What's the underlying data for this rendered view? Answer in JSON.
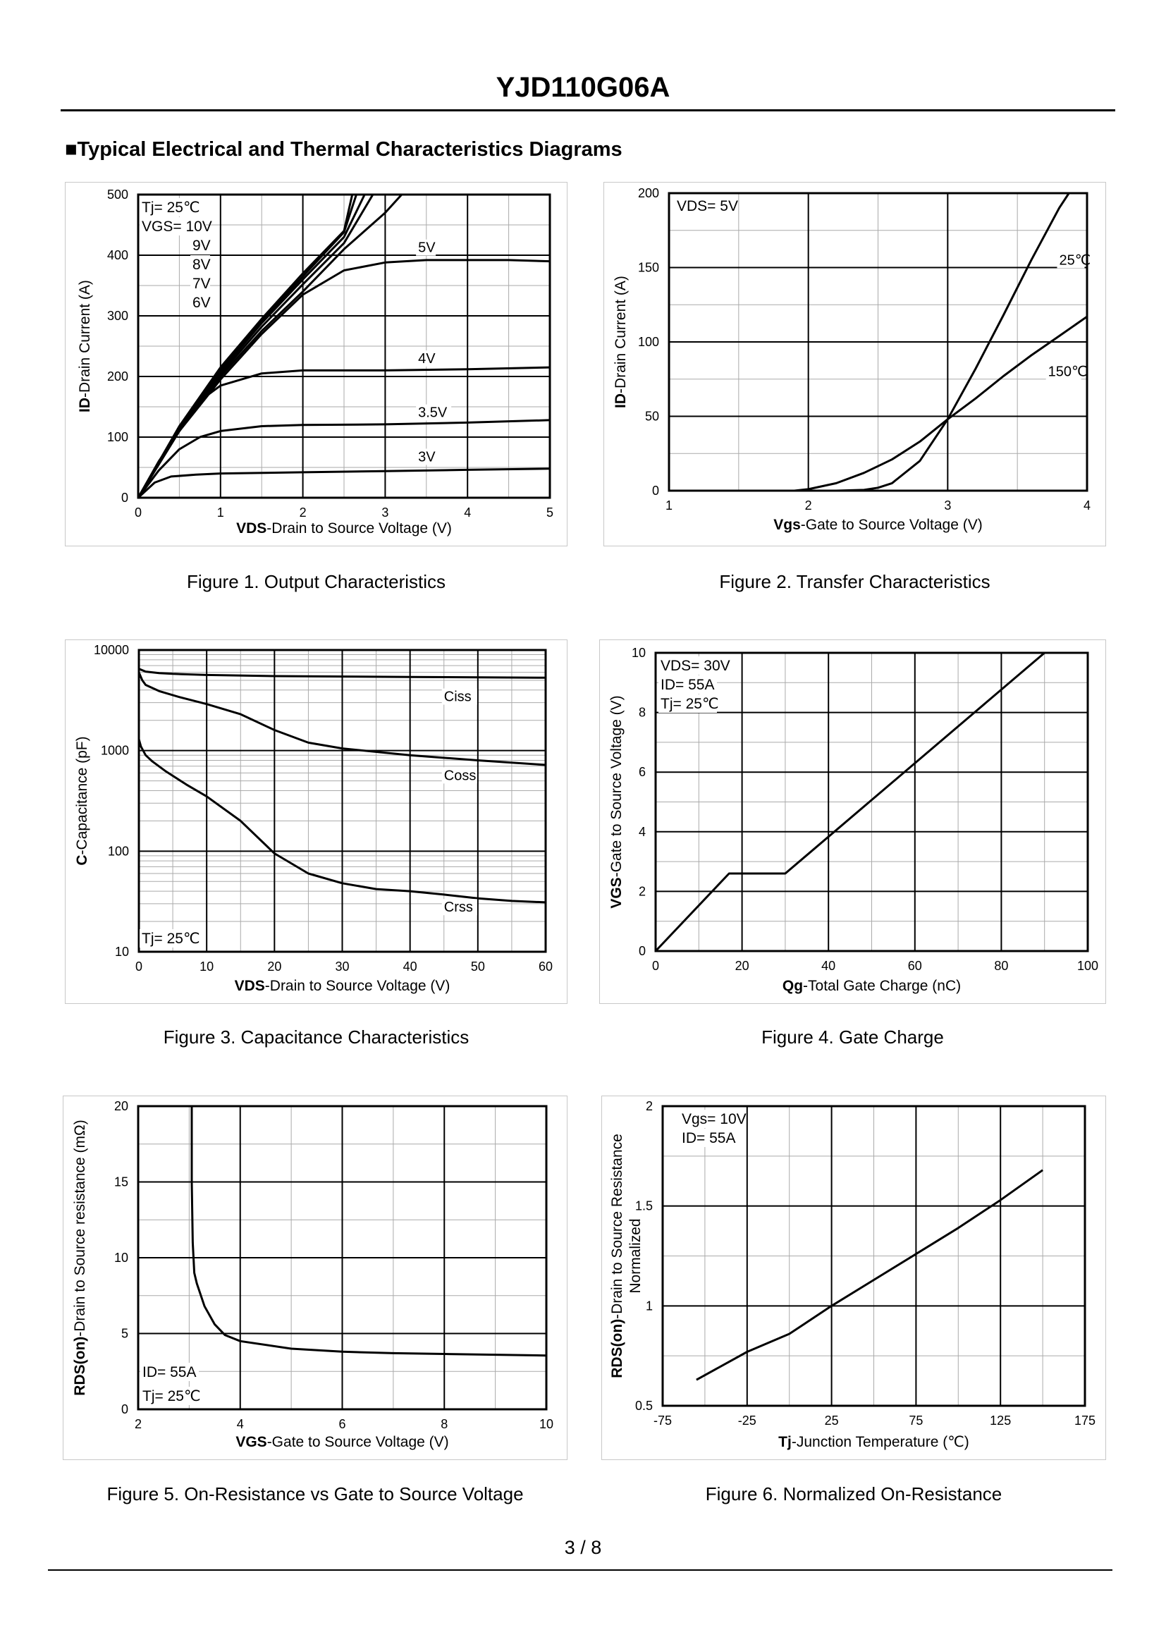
{
  "header": {
    "title": "YJD110G06A",
    "section_title": "■Typical Electrical and Thermal Characteristics Diagrams"
  },
  "footer": {
    "page": "3 / 8"
  },
  "chart_data": [
    {
      "id": "fig1",
      "type": "line",
      "caption": "Figure 1.  Output Characteristics",
      "xlabel_bold": "VDS",
      "xlabel_rest": "-Drain to Source Voltage (V)",
      "ylabel_bold": "ID",
      "ylabel_rest": "-Drain Current (A)",
      "xlim": [
        0,
        5
      ],
      "ylim": [
        0,
        500
      ],
      "xticks": [
        0,
        1,
        2,
        3,
        4,
        5
      ],
      "yticks": [
        0,
        100,
        200,
        300,
        400,
        500
      ],
      "xtick_labels": [
        "0",
        "1",
        "2",
        "3",
        "4",
        "5"
      ],
      "ytick_labels": [
        "0",
        "100",
        "200",
        "300",
        "400",
        "500"
      ],
      "notes": [
        "Tj= 25℃",
        "VGS= 10V",
        "9V",
        "8V",
        "7V",
        "6V"
      ],
      "series": [
        {
          "name": "10V",
          "x": [
            0,
            0.5,
            1,
            1.5,
            2,
            2.5,
            2.6
          ],
          "y": [
            0,
            118,
            215,
            295,
            370,
            440,
            500
          ]
        },
        {
          "name": "9V",
          "x": [
            0,
            0.5,
            1,
            1.5,
            2,
            2.5,
            2.65
          ],
          "y": [
            0,
            116,
            212,
            292,
            365,
            438,
            500
          ]
        },
        {
          "name": "8V",
          "x": [
            0,
            0.5,
            1,
            1.5,
            2,
            2.5,
            2.75
          ],
          "y": [
            0,
            114,
            208,
            288,
            360,
            430,
            500
          ]
        },
        {
          "name": "7V",
          "x": [
            0,
            0.5,
            1,
            1.5,
            2,
            2.5,
            2.85
          ],
          "y": [
            0,
            112,
            204,
            282,
            352,
            420,
            500
          ]
        },
        {
          "name": "6V",
          "x": [
            0,
            0.5,
            1,
            1.5,
            2,
            2.5,
            3,
            3.2
          ],
          "y": [
            0,
            110,
            200,
            275,
            340,
            410,
            470,
            500
          ]
        },
        {
          "name": "5V",
          "x": [
            0,
            0.25,
            0.5,
            1,
            1.5,
            2,
            2.5,
            3,
            3.5,
            4,
            4.5,
            5
          ],
          "y": [
            0,
            60,
            110,
            195,
            270,
            335,
            375,
            388,
            392,
            392,
            392,
            390
          ]
        },
        {
          "name": "4V",
          "x": [
            0,
            0.25,
            0.5,
            0.75,
            1,
            1.5,
            2,
            3,
            4,
            5
          ],
          "y": [
            0,
            55,
            110,
            160,
            185,
            205,
            210,
            210,
            212,
            215
          ]
        },
        {
          "name": "3.5V",
          "x": [
            0,
            0.25,
            0.5,
            0.75,
            1,
            1.5,
            2,
            3,
            4,
            5
          ],
          "y": [
            0,
            45,
            80,
            100,
            110,
            118,
            120,
            121,
            124,
            128
          ]
        },
        {
          "name": "3V",
          "x": [
            0,
            0.2,
            0.4,
            0.7,
            1,
            2,
            3,
            4,
            5
          ],
          "y": [
            0,
            25,
            35,
            38,
            40,
            42,
            44,
            46,
            48
          ]
        }
      ],
      "series_labels": [
        {
          "text": "5V",
          "x": 3.4,
          "y": 405
        },
        {
          "text": "4V",
          "x": 3.4,
          "y": 222
        },
        {
          "text": "3.5V",
          "x": 3.4,
          "y": 133
        },
        {
          "text": "3V",
          "x": 3.4,
          "y": 60
        }
      ]
    },
    {
      "id": "fig2",
      "type": "line",
      "caption": "Figure 2.  Transfer Characteristics",
      "xlabel_bold": "Vgs",
      "xlabel_rest": "-Gate to Source Voltage (V)",
      "ylabel_bold": "ID",
      "ylabel_rest": "-Drain Current (A)",
      "xlim": [
        1,
        4
      ],
      "ylim": [
        0,
        200
      ],
      "xticks": [
        1,
        2,
        3,
        4
      ],
      "yticks": [
        0,
        50,
        100,
        150,
        200
      ],
      "xtick_labels": [
        "1",
        "2",
        "3",
        "4"
      ],
      "ytick_labels": [
        "0",
        "50",
        "100",
        "150",
        "200"
      ],
      "notes": [
        "VDS= 5V"
      ],
      "series": [
        {
          "name": "25℃",
          "x": [
            1,
            2.2,
            2.4,
            2.5,
            2.6,
            2.8,
            3.0,
            3.2,
            3.4,
            3.6,
            3.8,
            3.87
          ],
          "y": [
            0,
            0,
            0.5,
            2,
            5,
            20,
            48,
            82,
            118,
            155,
            190,
            200
          ]
        },
        {
          "name": "150℃",
          "x": [
            1,
            1.9,
            2.0,
            2.2,
            2.4,
            2.6,
            2.8,
            3.0,
            3.2,
            3.4,
            3.6,
            3.8,
            4.0
          ],
          "y": [
            0,
            0,
            1,
            5,
            12,
            21,
            33,
            48,
            62,
            77,
            91,
            104,
            117
          ]
        }
      ],
      "series_labels": [
        {
          "text": "25℃",
          "x": 3.8,
          "y": 152
        },
        {
          "text": "150℃",
          "x": 3.72,
          "y": 77
        }
      ]
    },
    {
      "id": "fig3",
      "type": "line",
      "caption": "Figure 3.  Capacitance Characteristics",
      "xlabel_bold": "VDS",
      "xlabel_rest": "-Drain to Source Voltage (V)",
      "ylabel_bold": "C",
      "ylabel_rest": "-Capacitance (pF)",
      "xlim": [
        0,
        60
      ],
      "ylim": [
        10,
        10000
      ],
      "yscale": "log",
      "xticks": [
        0,
        10,
        20,
        30,
        40,
        50,
        60
      ],
      "yticks": [
        10,
        100,
        1000,
        10000
      ],
      "xtick_labels": [
        "0",
        "10",
        "20",
        "30",
        "40",
        "50",
        "60"
      ],
      "ytick_labels": [
        "10",
        "100",
        "1000",
        "10000"
      ],
      "notes": [
        "Tj= 25℃"
      ],
      "series": [
        {
          "name": "Ciss",
          "x": [
            0,
            1,
            3,
            5,
            10,
            20,
            30,
            40,
            50,
            60
          ],
          "y": [
            6500,
            6100,
            5900,
            5800,
            5650,
            5500,
            5450,
            5400,
            5350,
            5300
          ]
        },
        {
          "name": "Coss",
          "x": [
            0,
            0.5,
            1,
            3,
            6,
            10,
            15,
            20,
            25,
            30,
            40,
            50,
            60
          ],
          "y": [
            6000,
            5000,
            4500,
            3900,
            3400,
            2900,
            2300,
            1600,
            1200,
            1050,
            900,
            800,
            720
          ]
        },
        {
          "name": "Crss",
          "x": [
            0,
            0.3,
            1,
            2,
            4,
            7,
            10,
            15,
            20,
            25,
            30,
            35,
            40,
            45,
            50,
            55,
            60
          ],
          "y": [
            1300,
            1100,
            900,
            780,
            620,
            460,
            350,
            200,
            95,
            60,
            48,
            42,
            40,
            37,
            34,
            32,
            31
          ]
        }
      ],
      "series_labels": [
        {
          "text": "Ciss",
          "x": 45,
          "y": 3100
        },
        {
          "text": "Coss",
          "x": 45,
          "y": 510
        },
        {
          "text": "Crss",
          "x": 45,
          "y": 25
        }
      ]
    },
    {
      "id": "fig4",
      "type": "line",
      "caption": "Figure 4.  Gate Charge",
      "xlabel_bold": "Qg",
      "xlabel_rest": "-Total Gate Charge (nC)",
      "ylabel_bold": "VGS",
      "ylabel_rest": "-Gate to Source Voltage (V)",
      "xlim": [
        0,
        100
      ],
      "ylim": [
        0,
        10
      ],
      "xticks": [
        0,
        20,
        40,
        60,
        80,
        100
      ],
      "yticks": [
        0,
        2,
        4,
        6,
        8,
        10
      ],
      "xtick_labels": [
        "0",
        "20",
        "40",
        "60",
        "80",
        "100"
      ],
      "ytick_labels": [
        "0",
        "2",
        "4",
        "6",
        "8",
        "10"
      ],
      "notes": [
        "VDS= 30V",
        "ID= 55A",
        "Tj= 25℃"
      ],
      "series": [
        {
          "name": "VGS",
          "x": [
            0,
            17,
            30,
            90
          ],
          "y": [
            0,
            2.6,
            2.6,
            10
          ]
        }
      ],
      "series_labels": []
    },
    {
      "id": "fig5",
      "type": "line",
      "caption": "Figure 5.  On-Resistance vs Gate to Source Voltage",
      "xlabel_bold": "VGS",
      "xlabel_rest": "-Gate to Source Voltage (V)",
      "ylabel_bold": "RDS(on)",
      "ylabel_rest": "-Drain to Source resistance (mΩ)",
      "xlim": [
        2,
        10
      ],
      "ylim": [
        0,
        20
      ],
      "xticks": [
        2,
        4,
        6,
        8,
        10
      ],
      "yticks": [
        0,
        5,
        10,
        15,
        20
      ],
      "xtick_labels": [
        "2",
        "4",
        "6",
        "8",
        "10"
      ],
      "ytick_labels": [
        "0",
        "5",
        "10",
        "15",
        "20"
      ],
      "notes": [
        "ID= 55A",
        "Tj= 25℃"
      ],
      "series": [
        {
          "name": "RDS(on)",
          "x": [
            3.05,
            3.05,
            3.07,
            3.1,
            3.15,
            3.3,
            3.5,
            3.7,
            4,
            5,
            6,
            7,
            8,
            9,
            10
          ],
          "y": [
            20,
            15,
            11,
            9,
            8.3,
            6.8,
            5.6,
            4.9,
            4.5,
            4.0,
            3.8,
            3.7,
            3.65,
            3.6,
            3.55
          ]
        }
      ],
      "series_labels": []
    },
    {
      "id": "fig6",
      "type": "line",
      "caption": "Figure 6.  Normalized On-Resistance",
      "xlabel_bold": "Tj",
      "xlabel_rest": "-Junction  Temperature (℃)",
      "ylabel_bold": "RDS(on)",
      "ylabel_rest": "-Drain to Source Resistance",
      "ylabel_line2": "Normalized",
      "xlim": [
        -75,
        175
      ],
      "ylim": [
        0.5,
        2
      ],
      "xticks": [
        -75,
        -25,
        25,
        75,
        125,
        175
      ],
      "yticks": [
        0.5,
        1,
        1.5,
        2
      ],
      "xtick_labels": [
        "-75",
        "-25",
        "25",
        "75",
        "125",
        "175"
      ],
      "ytick_labels": [
        "0.5",
        "1",
        "1.5",
        "2"
      ],
      "notes": [
        "Vgs= 10V",
        "ID= 55A"
      ],
      "series": [
        {
          "name": "Normalized",
          "x": [
            -55,
            -25,
            0,
            25,
            50,
            75,
            100,
            125,
            150
          ],
          "y": [
            0.63,
            0.77,
            0.86,
            1.0,
            1.13,
            1.26,
            1.39,
            1.53,
            1.68
          ]
        }
      ],
      "series_labels": []
    }
  ]
}
